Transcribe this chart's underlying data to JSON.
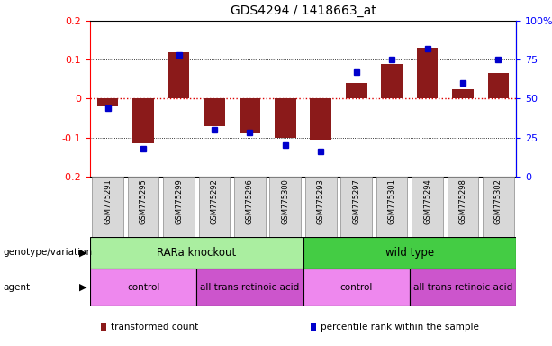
{
  "title": "GDS4294 / 1418663_at",
  "samples": [
    "GSM775291",
    "GSM775295",
    "GSM775299",
    "GSM775292",
    "GSM775296",
    "GSM775300",
    "GSM775293",
    "GSM775297",
    "GSM775301",
    "GSM775294",
    "GSM775298",
    "GSM775302"
  ],
  "transformed_count": [
    -0.02,
    -0.115,
    0.12,
    -0.07,
    -0.09,
    -0.1,
    -0.105,
    0.04,
    0.09,
    0.13,
    0.025,
    0.065
  ],
  "percentile_rank": [
    44,
    18,
    78,
    30,
    28,
    20,
    16,
    67,
    75,
    82,
    60,
    75
  ],
  "bar_color": "#8B1A1A",
  "dot_color": "#0000CC",
  "ylim_left": [
    -0.2,
    0.2
  ],
  "ylim_right": [
    0,
    100
  ],
  "yticks_left": [
    -0.2,
    -0.1,
    0.0,
    0.1,
    0.2
  ],
  "ytick_labels_left": [
    "-0.2",
    "-0.1",
    "0",
    "0.1",
    "0.2"
  ],
  "yticks_right": [
    0,
    25,
    50,
    75,
    100
  ],
  "ytick_labels_right": [
    "0",
    "25",
    "50",
    "75",
    "100%"
  ],
  "hline_color": "#DD0000",
  "grid_color": "black",
  "genotype_groups": [
    {
      "label": "RARa knockout",
      "start": 0,
      "end": 6,
      "color": "#AAEEA0"
    },
    {
      "label": "wild type",
      "start": 6,
      "end": 12,
      "color": "#44CC44"
    }
  ],
  "agent_groups": [
    {
      "label": "control",
      "start": 0,
      "end": 3,
      "color": "#EE88EE"
    },
    {
      "label": "all trans retinoic acid",
      "start": 3,
      "end": 6,
      "color": "#CC55CC"
    },
    {
      "label": "control",
      "start": 6,
      "end": 9,
      "color": "#EE88EE"
    },
    {
      "label": "all trans retinoic acid",
      "start": 9,
      "end": 12,
      "color": "#CC55CC"
    }
  ],
  "genotype_label": "genotype/variation",
  "agent_label": "agent",
  "legend_items": [
    {
      "label": "transformed count",
      "color": "#8B1A1A"
    },
    {
      "label": "percentile rank within the sample",
      "color": "#0000CC"
    }
  ],
  "bar_width": 0.6,
  "bg_color": "#FFFFFF",
  "sample_box_color": "#D8D8D8",
  "sample_box_edge": "#888888"
}
